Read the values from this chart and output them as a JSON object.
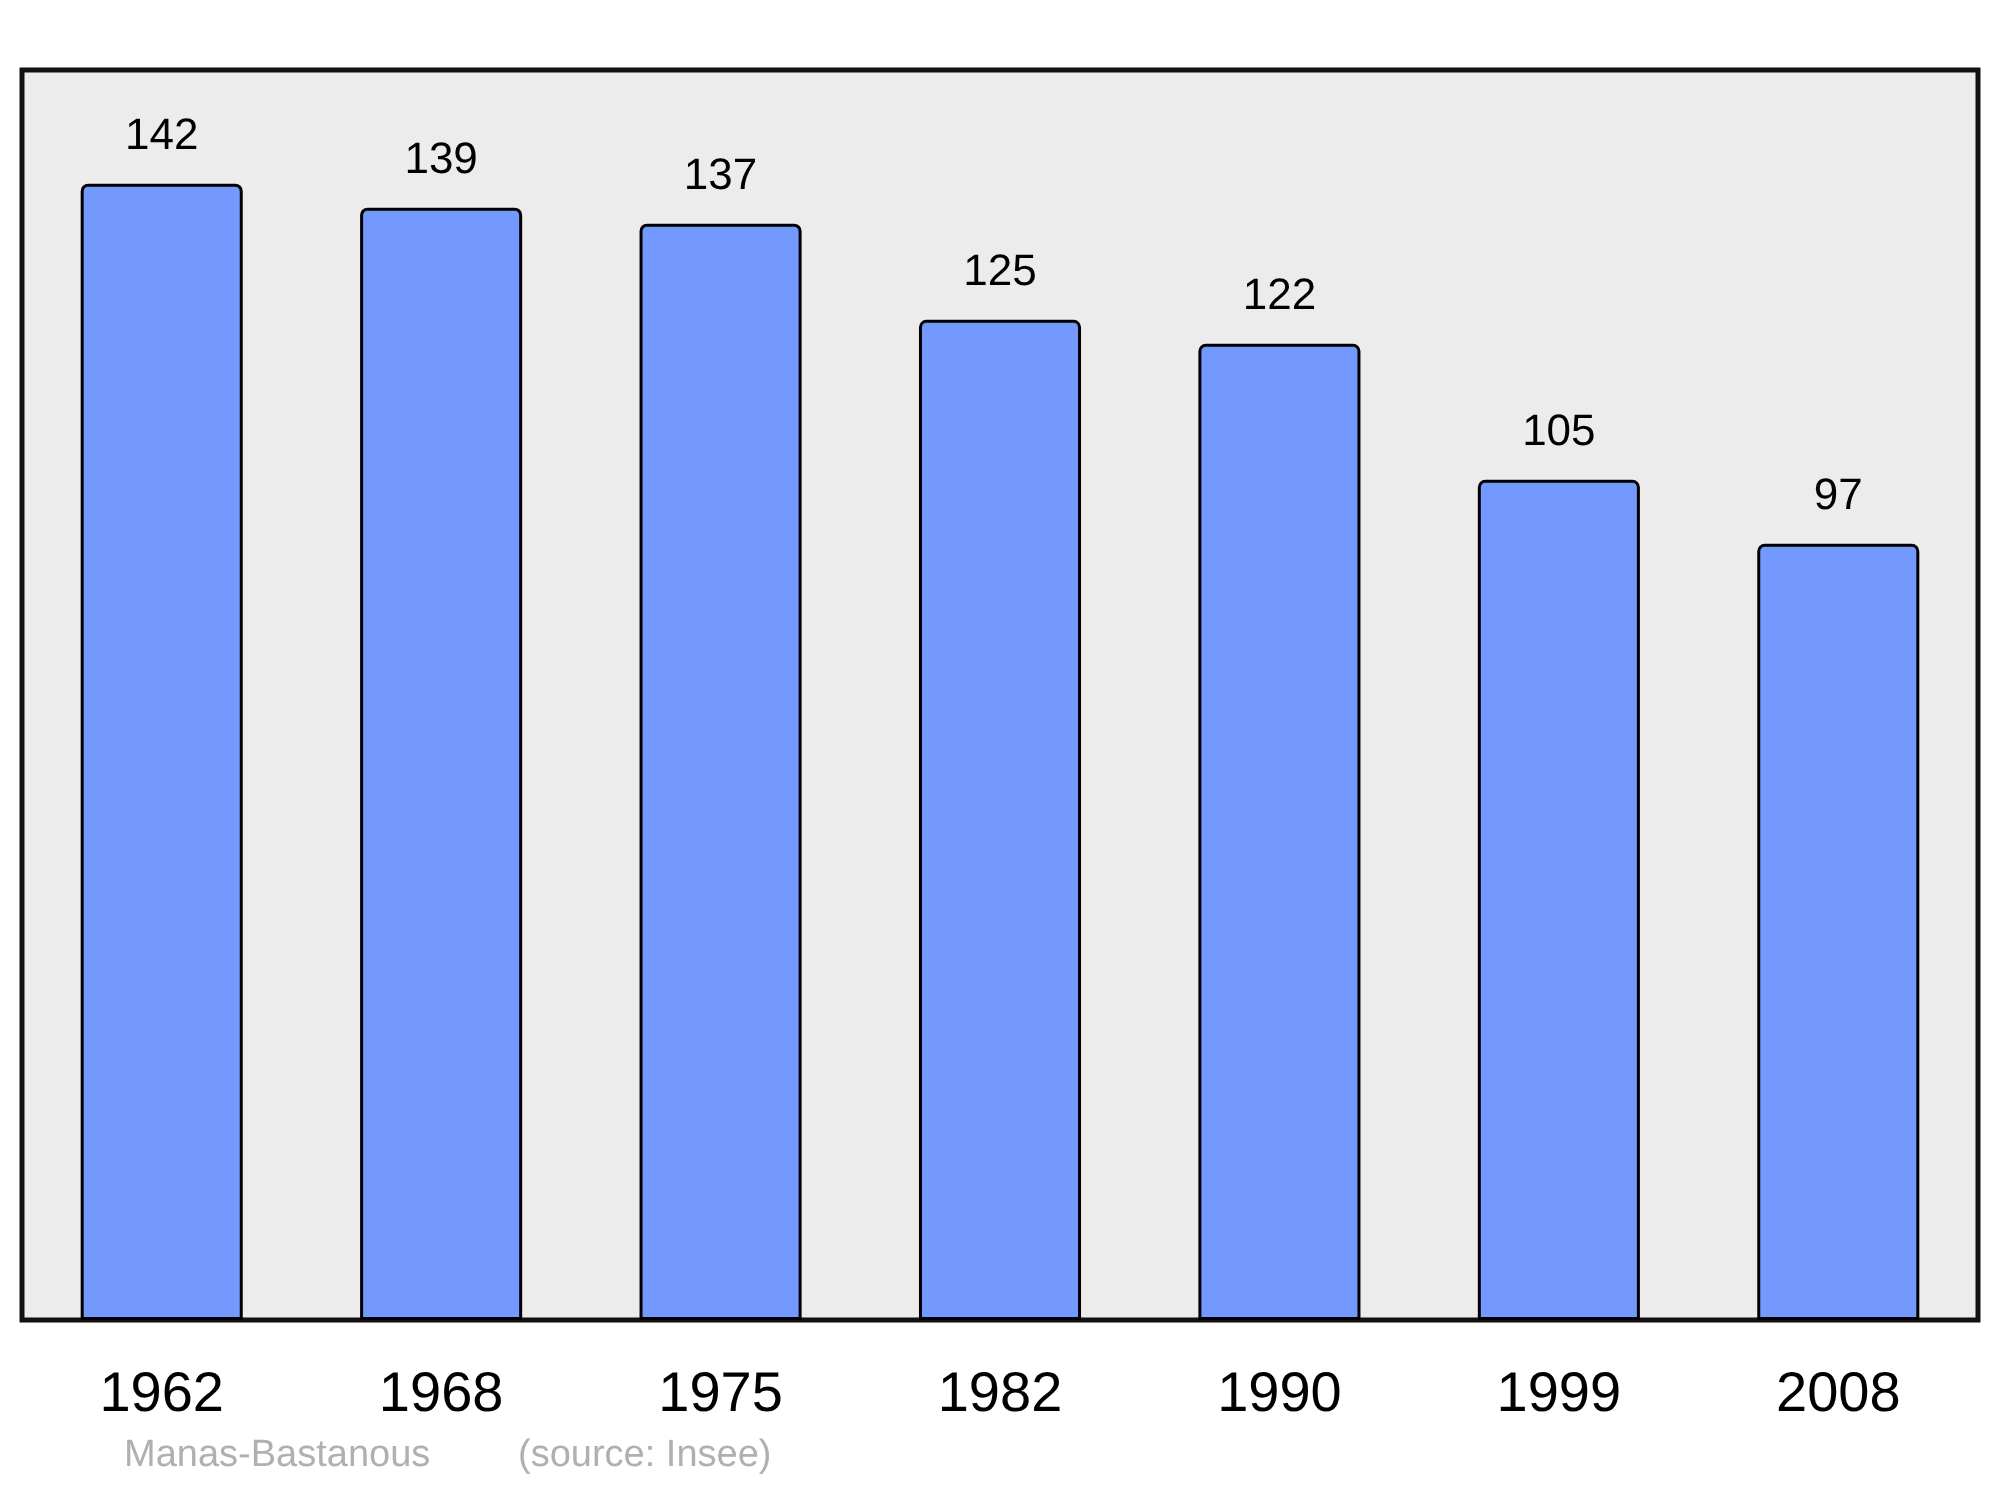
{
  "chart_data": {
    "type": "bar",
    "categories": [
      "1962",
      "1968",
      "1975",
      "1982",
      "1990",
      "1999",
      "2008"
    ],
    "values": [
      142,
      139,
      137,
      125,
      122,
      105,
      97
    ],
    "color": "#7399ff",
    "data_labels": true,
    "annotations": [
      "Manas-Bastanous",
      "(source: Insee)"
    ]
  }
}
